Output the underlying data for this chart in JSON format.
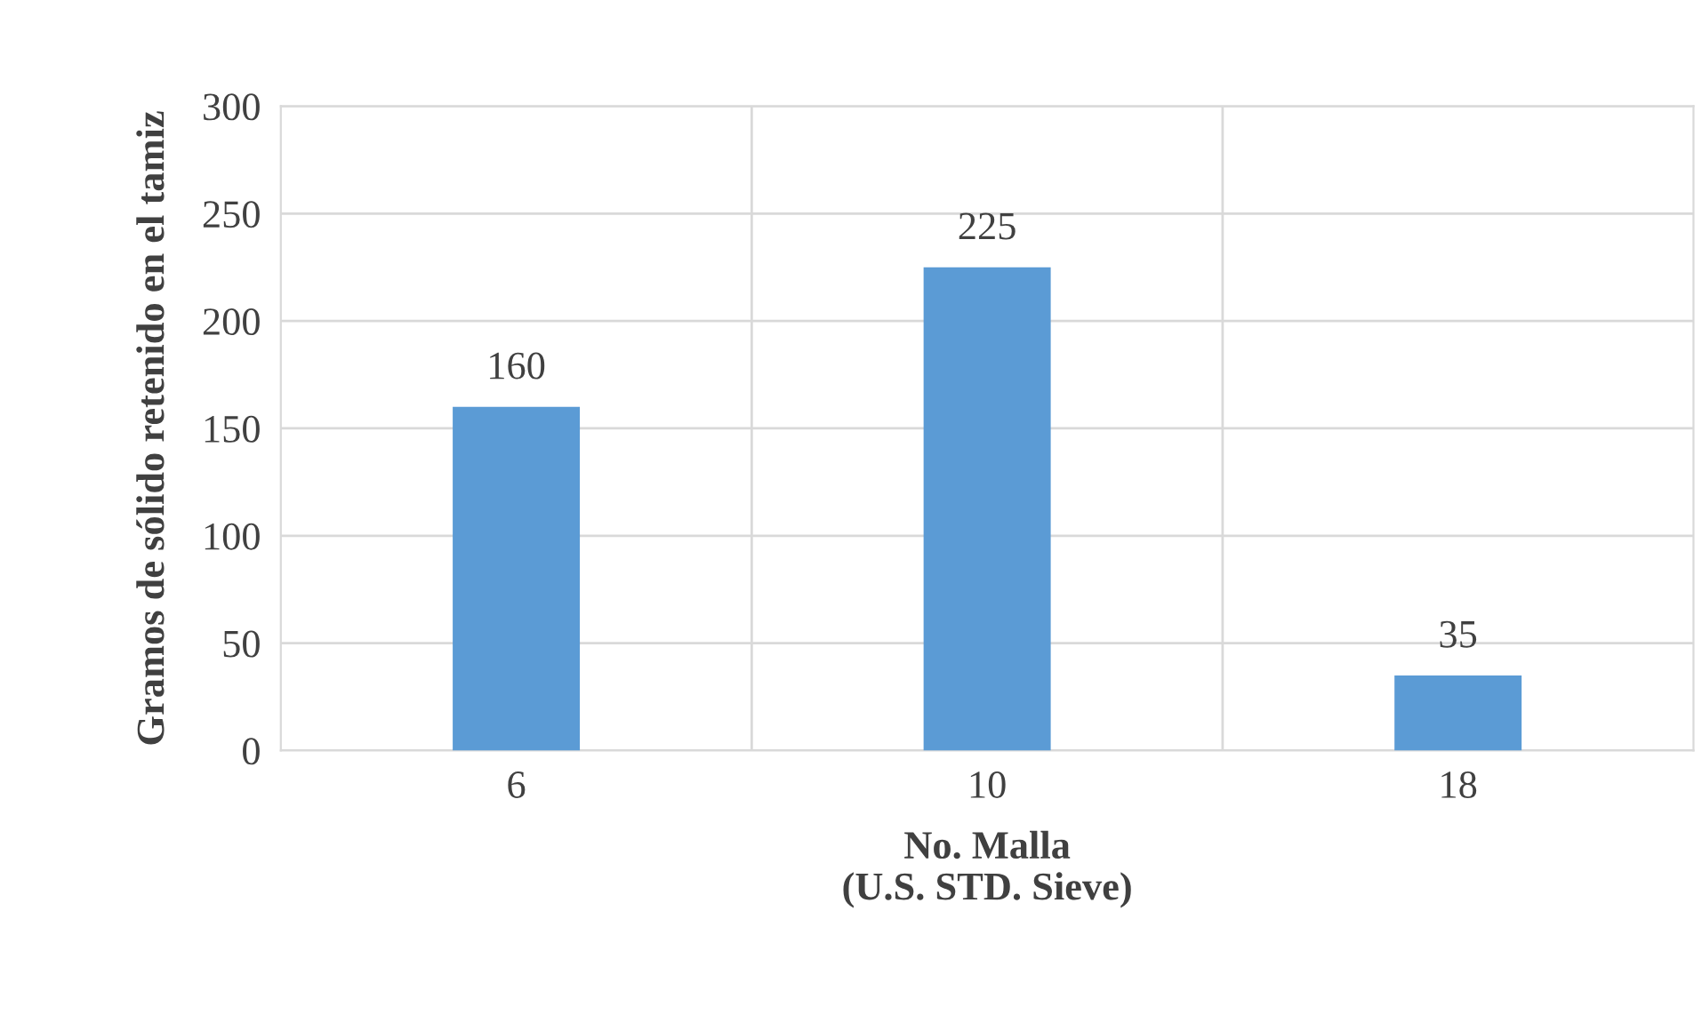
{
  "chart_data": {
    "type": "bar",
    "xlabel": "No. Malla\n(U.S. STD. Sieve)",
    "ylabel": "Gramos de sólido retenido en el tamiz",
    "categories": [
      "6",
      "10",
      "18"
    ],
    "series": [
      {
        "color": "#5b9bd5",
        "values": [
          160,
          225,
          35
        ]
      }
    ],
    "ylim": [
      0,
      300
    ],
    "yticks": [
      0,
      50,
      100,
      150,
      200,
      250,
      300
    ],
    "grid": true,
    "data_labels": true
  }
}
